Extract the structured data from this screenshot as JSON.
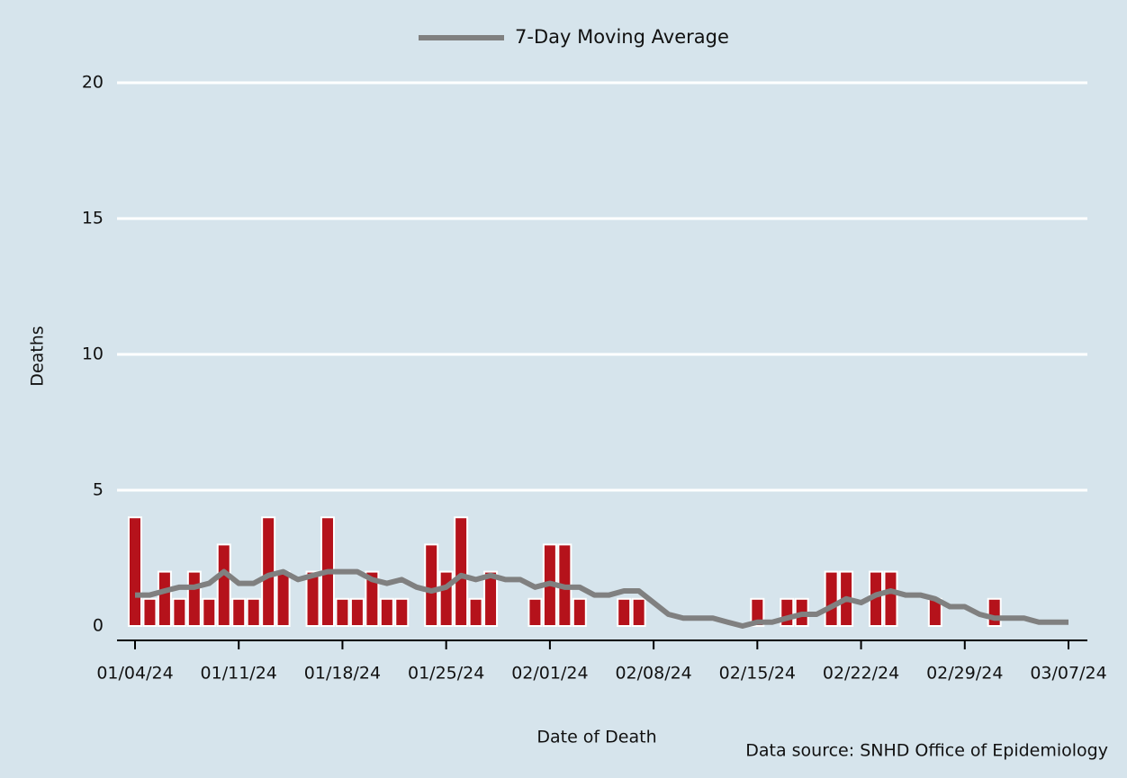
{
  "chart_data": {
    "type": "bar",
    "x_label": "Date of Death",
    "y_label": "Deaths",
    "source": "Data source: SNHD Office of Epidemiology",
    "categories": [
      "01/04/24",
      null,
      null,
      null,
      null,
      null,
      null,
      "01/11/24",
      null,
      null,
      null,
      null,
      null,
      null,
      "01/18/24",
      null,
      null,
      null,
      null,
      null,
      null,
      "01/25/24",
      null,
      null,
      null,
      null,
      null,
      null,
      "02/01/24",
      null,
      null,
      null,
      null,
      null,
      null,
      "02/08/24",
      null,
      null,
      null,
      null,
      null,
      null,
      "02/15/24",
      null,
      null,
      null,
      null,
      null,
      null,
      "02/22/24",
      null,
      null,
      null,
      null,
      null,
      null,
      "02/29/24",
      null,
      null,
      null,
      null,
      null,
      null,
      "03/07/24"
    ],
    "series": [
      {
        "type": "bar",
        "color": "#b5121b",
        "values": [
          4,
          1,
          2,
          1,
          2,
          1,
          3,
          1,
          1,
          4,
          2,
          0,
          2,
          4,
          1,
          1,
          2,
          1,
          1,
          0,
          3,
          2,
          4,
          1,
          2,
          0,
          0,
          1,
          3,
          3,
          1,
          0,
          0,
          1,
          1,
          0,
          0,
          0,
          0,
          0,
          0,
          0,
          1,
          0,
          1,
          1,
          0,
          2,
          2,
          0,
          2,
          2,
          0,
          0,
          1,
          0,
          0,
          0,
          1,
          0,
          0,
          0,
          0,
          0
        ]
      },
      {
        "type": "line",
        "name": "7-Day Moving Average",
        "color": "#808080",
        "values": [
          1.14,
          1.14,
          1.29,
          1.43,
          1.43,
          1.57,
          2.0,
          1.57,
          1.57,
          1.86,
          2.0,
          1.71,
          1.86,
          2.0,
          2.0,
          2.0,
          1.71,
          1.57,
          1.71,
          1.43,
          1.29,
          1.43,
          1.86,
          1.71,
          1.86,
          1.71,
          1.71,
          1.43,
          1.57,
          1.43,
          1.43,
          1.14,
          1.14,
          1.29,
          1.29,
          0.86,
          0.43,
          0.29,
          0.29,
          0.29,
          0.14,
          0,
          0.14,
          0.14,
          0.29,
          0.43,
          0.43,
          0.71,
          1.0,
          0.86,
          1.14,
          1.29,
          1.14,
          1.14,
          1.0,
          0.71,
          0.71,
          0.43,
          0.29,
          0.29,
          0.29,
          0.14,
          0.14,
          0.14
        ]
      }
    ],
    "ylim": [
      0,
      20
    ],
    "yticks": [
      0,
      5,
      10,
      15,
      20
    ],
    "grid": true,
    "legend": "top"
  }
}
